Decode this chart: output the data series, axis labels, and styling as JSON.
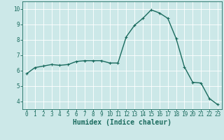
{
  "x": [
    0,
    1,
    2,
    3,
    4,
    5,
    6,
    7,
    8,
    9,
    10,
    11,
    12,
    13,
    14,
    15,
    16,
    17,
    18,
    19,
    20,
    21,
    22,
    23
  ],
  "y": [
    5.8,
    6.2,
    6.3,
    6.4,
    6.35,
    6.4,
    6.6,
    6.65,
    6.65,
    6.65,
    6.5,
    6.5,
    8.2,
    8.95,
    9.4,
    9.95,
    9.75,
    9.4,
    8.1,
    6.25,
    5.25,
    5.2,
    4.2,
    3.8
  ],
  "line_color": "#1a6b5e",
  "marker": "+",
  "marker_size": 3,
  "marker_linewidth": 0.8,
  "bg_color": "#cce8e8",
  "grid_color": "#ffffff",
  "tick_color": "#1a6b5e",
  "xlabel": "Humidex (Indice chaleur)",
  "xlabel_fontsize": 7,
  "ylim": [
    3.5,
    10.5
  ],
  "xlim": [
    -0.5,
    23.5
  ],
  "yticks": [
    4,
    5,
    6,
    7,
    8,
    9,
    10
  ],
  "xticks": [
    0,
    1,
    2,
    3,
    4,
    5,
    6,
    7,
    8,
    9,
    10,
    11,
    12,
    13,
    14,
    15,
    16,
    17,
    18,
    19,
    20,
    21,
    22,
    23
  ],
  "tick_fontsize": 5.5,
  "linewidth": 1.0,
  "spine_color": "#1a6b5e"
}
